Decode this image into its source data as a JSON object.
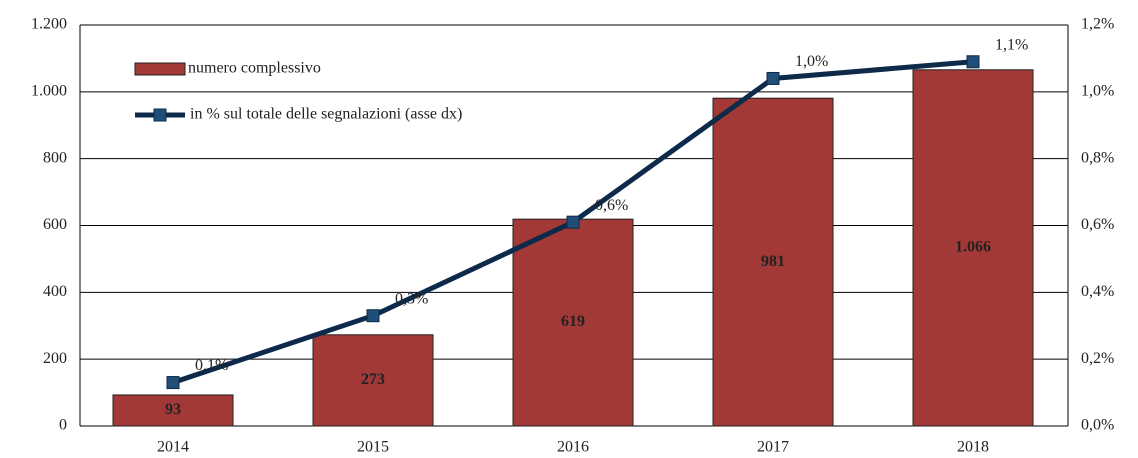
{
  "chart_data": {
    "type": "bar",
    "categories": [
      "2014",
      "2015",
      "2016",
      "2017",
      "2018"
    ],
    "series": [
      {
        "name": "numero complessivo",
        "type": "bar",
        "color": "#a23936",
        "values": [
          93,
          273,
          619,
          981,
          1066
        ],
        "value_labels": [
          "93",
          "273",
          "619",
          "981",
          "1.066"
        ]
      },
      {
        "name": "in % sul totale delle segnalazioni (asse dx)",
        "type": "line",
        "axis": "y2",
        "color": "#0e2a4b",
        "marker_color": "#1f4e79",
        "values": [
          0.13,
          0.33,
          0.61,
          1.04,
          1.09
        ],
        "value_labels": [
          "0,1%",
          "0,3%",
          "0,6%",
          "1,0%",
          "1,1%"
        ]
      }
    ],
    "ylim": [
      0,
      1200
    ],
    "yticks": [
      0,
      200,
      400,
      600,
      800,
      {
        "value": 1000,
        "label": "1.000"
      },
      {
        "value": 1200,
        "label": "1.200"
      }
    ],
    "y2lim": [
      0,
      1.2
    ],
    "y2ticks": [
      {
        "value": 0,
        "label": "0,0%"
      },
      {
        "value": 0.2,
        "label": "0,2%"
      },
      {
        "value": 0.4,
        "label": "0,4%"
      },
      {
        "value": 0.6,
        "label": "0,6%"
      },
      {
        "value": 0.8,
        "label": "0,8%"
      },
      {
        "value": 1.0,
        "label": "1,0%"
      },
      {
        "value": 1.2,
        "label": "1,2%"
      }
    ],
    "grid": true,
    "legend": "upper left"
  }
}
